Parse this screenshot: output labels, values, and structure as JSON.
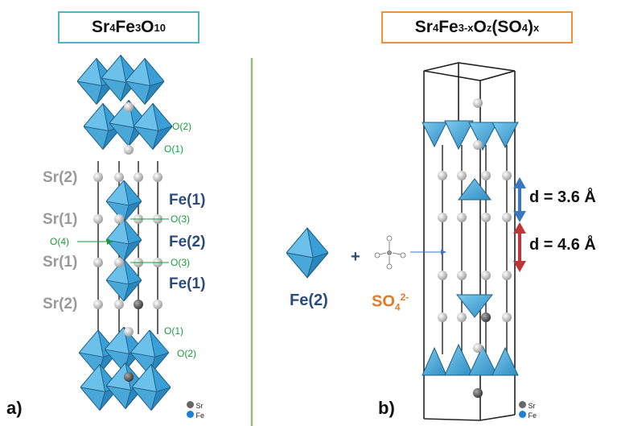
{
  "structure_a": {
    "title_main": "Sr",
    "title_sub1": "4",
    "title_mid1": "Fe",
    "title_sub2": "3",
    "title_mid2": "O",
    "title_sub3": "10",
    "panel_label": "a)",
    "sr_labels": [
      "Sr(2)",
      "Sr(1)",
      "Sr(1)",
      "Sr(2)"
    ],
    "fe_labels": [
      "Fe(1)",
      "Fe(2)",
      "Fe(1)"
    ],
    "o_labels_top": [
      "O(2)",
      "O(1)"
    ],
    "o_labels_mid": [
      "O(3)",
      "O(4)",
      "O(3)"
    ],
    "o_labels_bottom": [
      "O(1)",
      "O(2)"
    ],
    "legend_sr": "Sr",
    "legend_fe": "Fe"
  },
  "structure_b": {
    "title_parts": [
      "Sr",
      "4",
      "Fe",
      "3-x",
      "O",
      "z",
      "(SO",
      "4",
      ")",
      "x"
    ],
    "panel_label": "b)",
    "fe_label": "Fe(2)",
    "plus": "+",
    "sulfate_main": "SO",
    "sulfate_sub": "4",
    "sulfate_sup": "2-",
    "distance_1": "d = 3.6 Å",
    "distance_2": "d = 4.6 Å",
    "legend_sr": "Sr",
    "legend_fe": "Fe"
  },
  "colors": {
    "octahedron": "#4aa8d8",
    "octahedron_dark": "#2a7fb0",
    "sr_atom": "#b8b8b8",
    "divider": "#9bb87a",
    "arrow_blue": "#3a78c0",
    "arrow_red": "#c0353a",
    "title_a_border": "#4db3c6",
    "title_b_border": "#f0913a",
    "sulfate_label": "#e07b2a"
  }
}
